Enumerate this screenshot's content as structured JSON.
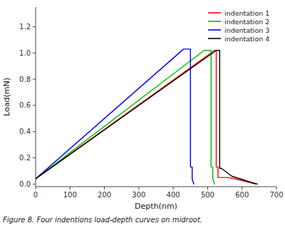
{
  "chart_data": {
    "type": "line",
    "xlabel": "Depth(nm)",
    "ylabel": "Load(mN)",
    "caption": "Figure 8. Four indentions load-depth curves on midroot.",
    "xlim": [
      0,
      700
    ],
    "ylim": [
      -0.02,
      1.35
    ],
    "xticks": [
      0,
      100,
      200,
      300,
      400,
      500,
      600,
      700
    ],
    "yticks": [
      {
        "value": 0.0,
        "label": "0.0"
      },
      0.2,
      0.4,
      0.6,
      0.8,
      {
        "value": 1.0,
        "label": "1.0"
      },
      1.2
    ],
    "grid": false,
    "legend": "upper right",
    "series": [
      {
        "name": "indentation 1",
        "color": "#ff0000",
        "x": [
          0,
          520,
          525,
          525,
          530,
          530,
          560,
          595,
          640
        ],
        "values": [
          0.04,
          1.02,
          1.02,
          0.13,
          0.13,
          0.05,
          0.05,
          0.03,
          0.0
        ]
      },
      {
        "name": "indentation 2",
        "color": "#00bb00",
        "x": [
          0,
          490,
          510,
          510,
          515,
          515,
          520
        ],
        "values": [
          0.04,
          1.02,
          1.02,
          0.13,
          0.13,
          0.04,
          0.0
        ]
      },
      {
        "name": "indentation 3",
        "color": "#0000ff",
        "x": [
          0,
          430,
          450,
          450,
          455,
          455,
          460
        ],
        "values": [
          0.04,
          1.03,
          1.03,
          0.13,
          0.13,
          0.04,
          0.0
        ]
      },
      {
        "name": "indentation 4",
        "color": "#000000",
        "x": [
          0,
          525,
          535,
          535,
          540,
          570,
          630,
          645
        ],
        "values": [
          0.04,
          1.02,
          1.02,
          0.12,
          0.12,
          0.06,
          0.01,
          0.0
        ]
      }
    ]
  }
}
